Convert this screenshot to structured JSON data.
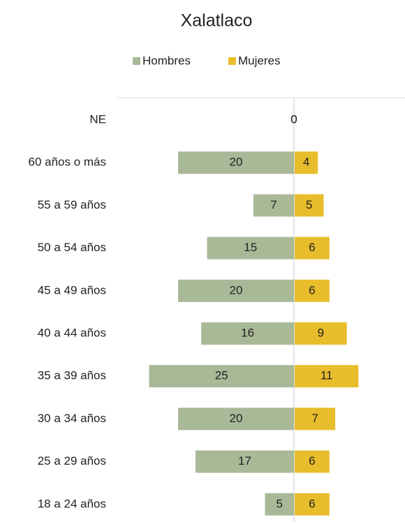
{
  "chart_data": {
    "type": "pyramid",
    "title": "Xalatlaco",
    "categories": [
      "NE",
      "60 años o más",
      "55 a 59 años",
      "50 a 54 años",
      "45 a 49 años",
      "40 a 44 años",
      "35 a 39 años",
      "30 a 34 años",
      "25 a 29 años",
      "18 a 24 años"
    ],
    "series": [
      {
        "name": "Hombres",
        "color": "#a9b997",
        "values": [
          0,
          20,
          7,
          15,
          20,
          16,
          25,
          20,
          17,
          5
        ]
      },
      {
        "name": "Mujeres",
        "color": "#e8bd2c",
        "values": [
          0,
          4,
          5,
          6,
          6,
          9,
          11,
          7,
          6,
          6
        ]
      }
    ]
  }
}
